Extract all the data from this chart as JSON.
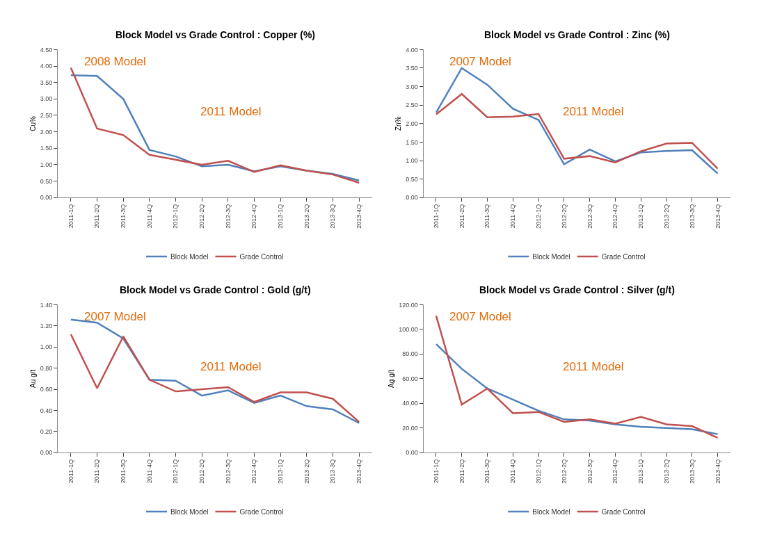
{
  "chart_data": [
    {
      "type": "line",
      "title": "Block Model vs Grade Control : Copper (%)",
      "ylabel": "Cu%",
      "categories": [
        "2011-1Q",
        "2011-2Q",
        "2011-3Q",
        "2011-4Q",
        "2012-1Q",
        "2012-2Q",
        "2012-3Q",
        "2012-4Q",
        "2013-1Q",
        "2013-2Q",
        "2013-3Q",
        "2013-4Q"
      ],
      "series": [
        {
          "name": "Block Model",
          "color": "#4f81bd",
          "values": [
            3.72,
            3.7,
            3.0,
            1.45,
            1.25,
            0.95,
            1.0,
            0.8,
            0.95,
            0.82,
            0.72,
            0.52
          ]
        },
        {
          "name": "Grade Control",
          "color": "#c0504d",
          "values": [
            3.95,
            2.1,
            1.9,
            1.3,
            1.15,
            1.0,
            1.12,
            0.78,
            0.98,
            0.82,
            0.7,
            0.45
          ]
        }
      ],
      "ylim": [
        0,
        4.5
      ],
      "yticks": [
        {
          "value": 0,
          "label": "0.00"
        },
        {
          "value": 0.5,
          "label": "0.50"
        },
        {
          "value": 1,
          "label": "1.00"
        },
        {
          "value": 1.5,
          "label": "1.50"
        },
        {
          "value": 2,
          "label": "2.00"
        },
        {
          "value": 2.5,
          "label": "2.50"
        },
        {
          "value": 3,
          "label": "3.00"
        },
        {
          "value": 3.5,
          "label": "3.50"
        },
        {
          "value": 4,
          "label": "4.00"
        },
        {
          "value": 4.5,
          "label": "4.50"
        }
      ],
      "annotations": [
        "2008 Model",
        "2011 Model"
      ],
      "legend": "bottom"
    },
    {
      "type": "line",
      "title": "Block Model vs Grade Control : Zinc (%)",
      "ylabel": "Zn%",
      "categories": [
        "2011-1Q",
        "2011-2Q",
        "2011-3Q",
        "2011-4Q",
        "2012-1Q",
        "2012-2Q",
        "2012-3Q",
        "2012-4Q",
        "2013-1Q",
        "2013-2Q",
        "2013-3Q",
        "2013-4Q"
      ],
      "series": [
        {
          "name": "Block Model",
          "color": "#4f81bd",
          "values": [
            2.3,
            3.5,
            3.05,
            2.4,
            2.1,
            0.9,
            1.3,
            0.98,
            1.22,
            1.26,
            1.28,
            0.65
          ]
        },
        {
          "name": "Grade Control",
          "color": "#c0504d",
          "values": [
            2.25,
            2.8,
            2.17,
            2.19,
            2.26,
            1.05,
            1.12,
            0.95,
            1.25,
            1.46,
            1.48,
            0.78
          ]
        }
      ],
      "ylim": [
        0,
        4
      ],
      "yticks": [
        {
          "value": 0,
          "label": "0.00"
        },
        {
          "value": 0.5,
          "label": "0.50"
        },
        {
          "value": 1,
          "label": "1.00"
        },
        {
          "value": 1.5,
          "label": "1.50"
        },
        {
          "value": 2,
          "label": "2.00"
        },
        {
          "value": 2.5,
          "label": "2.50"
        },
        {
          "value": 3,
          "label": "3.00"
        },
        {
          "value": 3.5,
          "label": "3.50"
        },
        {
          "value": 4,
          "label": "4.00"
        }
      ],
      "annotations": [
        "2007 Model",
        "2011 Model"
      ],
      "legend": "bottom"
    },
    {
      "type": "line",
      "title": "Block Model vs Grade Control : Gold (g/t)",
      "ylabel": "Au g/t",
      "categories": [
        "2011-1Q",
        "2011-2Q",
        "2011-3Q",
        "2011-4Q",
        "2012-1Q",
        "2012-2Q",
        "2012-3Q",
        "2012-4Q",
        "2013-1Q",
        "2013-2Q",
        "2013-3Q",
        "2013-4Q"
      ],
      "series": [
        {
          "name": "Block Model",
          "color": "#4f81bd",
          "values": [
            1.26,
            1.23,
            1.08,
            0.69,
            0.68,
            0.54,
            0.59,
            0.47,
            0.54,
            0.44,
            0.41,
            0.28
          ]
        },
        {
          "name": "Grade Control",
          "color": "#c0504d",
          "values": [
            1.12,
            0.61,
            1.1,
            0.69,
            0.58,
            0.6,
            0.62,
            0.48,
            0.57,
            0.57,
            0.51,
            0.29
          ]
        }
      ],
      "ylim": [
        0,
        1.4
      ],
      "yticks": [
        {
          "value": 0,
          "label": "0.00"
        },
        {
          "value": 0.2,
          "label": "0.20"
        },
        {
          "value": 0.4,
          "label": "0.40"
        },
        {
          "value": 0.6,
          "label": "0.60"
        },
        {
          "value": 0.8,
          "label": "0.80"
        },
        {
          "value": 1,
          "label": "1.00"
        },
        {
          "value": 1.2,
          "label": "1.20"
        },
        {
          "value": 1.4,
          "label": "1.40"
        }
      ],
      "annotations": [
        "2007 Model",
        "2011 Model"
      ],
      "legend": "bottom"
    },
    {
      "type": "line",
      "title": "Block Model vs Grade Control : Silver (g/t)",
      "ylabel": "Ag g/t",
      "categories": [
        "2011-1Q",
        "2011-2Q",
        "2011-3Q",
        "2011-4Q",
        "2012-1Q",
        "2012-2Q",
        "2012-3Q",
        "2012-4Q",
        "2013-1Q",
        "2013-2Q",
        "2013-3Q",
        "2013-4Q"
      ],
      "series": [
        {
          "name": "Block Model",
          "color": "#4f81bd",
          "values": [
            88,
            68,
            52,
            43,
            34,
            27,
            26,
            23,
            21,
            20,
            19,
            15
          ]
        },
        {
          "name": "Grade Control",
          "color": "#c0504d",
          "values": [
            111,
            39,
            52,
            32,
            33,
            25,
            27,
            23.5,
            29,
            23,
            21.5,
            12
          ]
        }
      ],
      "ylim": [
        0,
        120
      ],
      "yticks": [
        {
          "value": 0,
          "label": "0.00"
        },
        {
          "value": 20,
          "label": "20.00"
        },
        {
          "value": 40,
          "label": "40.00"
        },
        {
          "value": 60,
          "label": "60.00"
        },
        {
          "value": 80,
          "label": "80.00"
        },
        {
          "value": 100,
          "label": "100.00"
        },
        {
          "value": 120,
          "label": "120.00"
        }
      ],
      "annotations": [
        "2007 Model",
        "2011 Model"
      ],
      "legend": "bottom"
    }
  ]
}
